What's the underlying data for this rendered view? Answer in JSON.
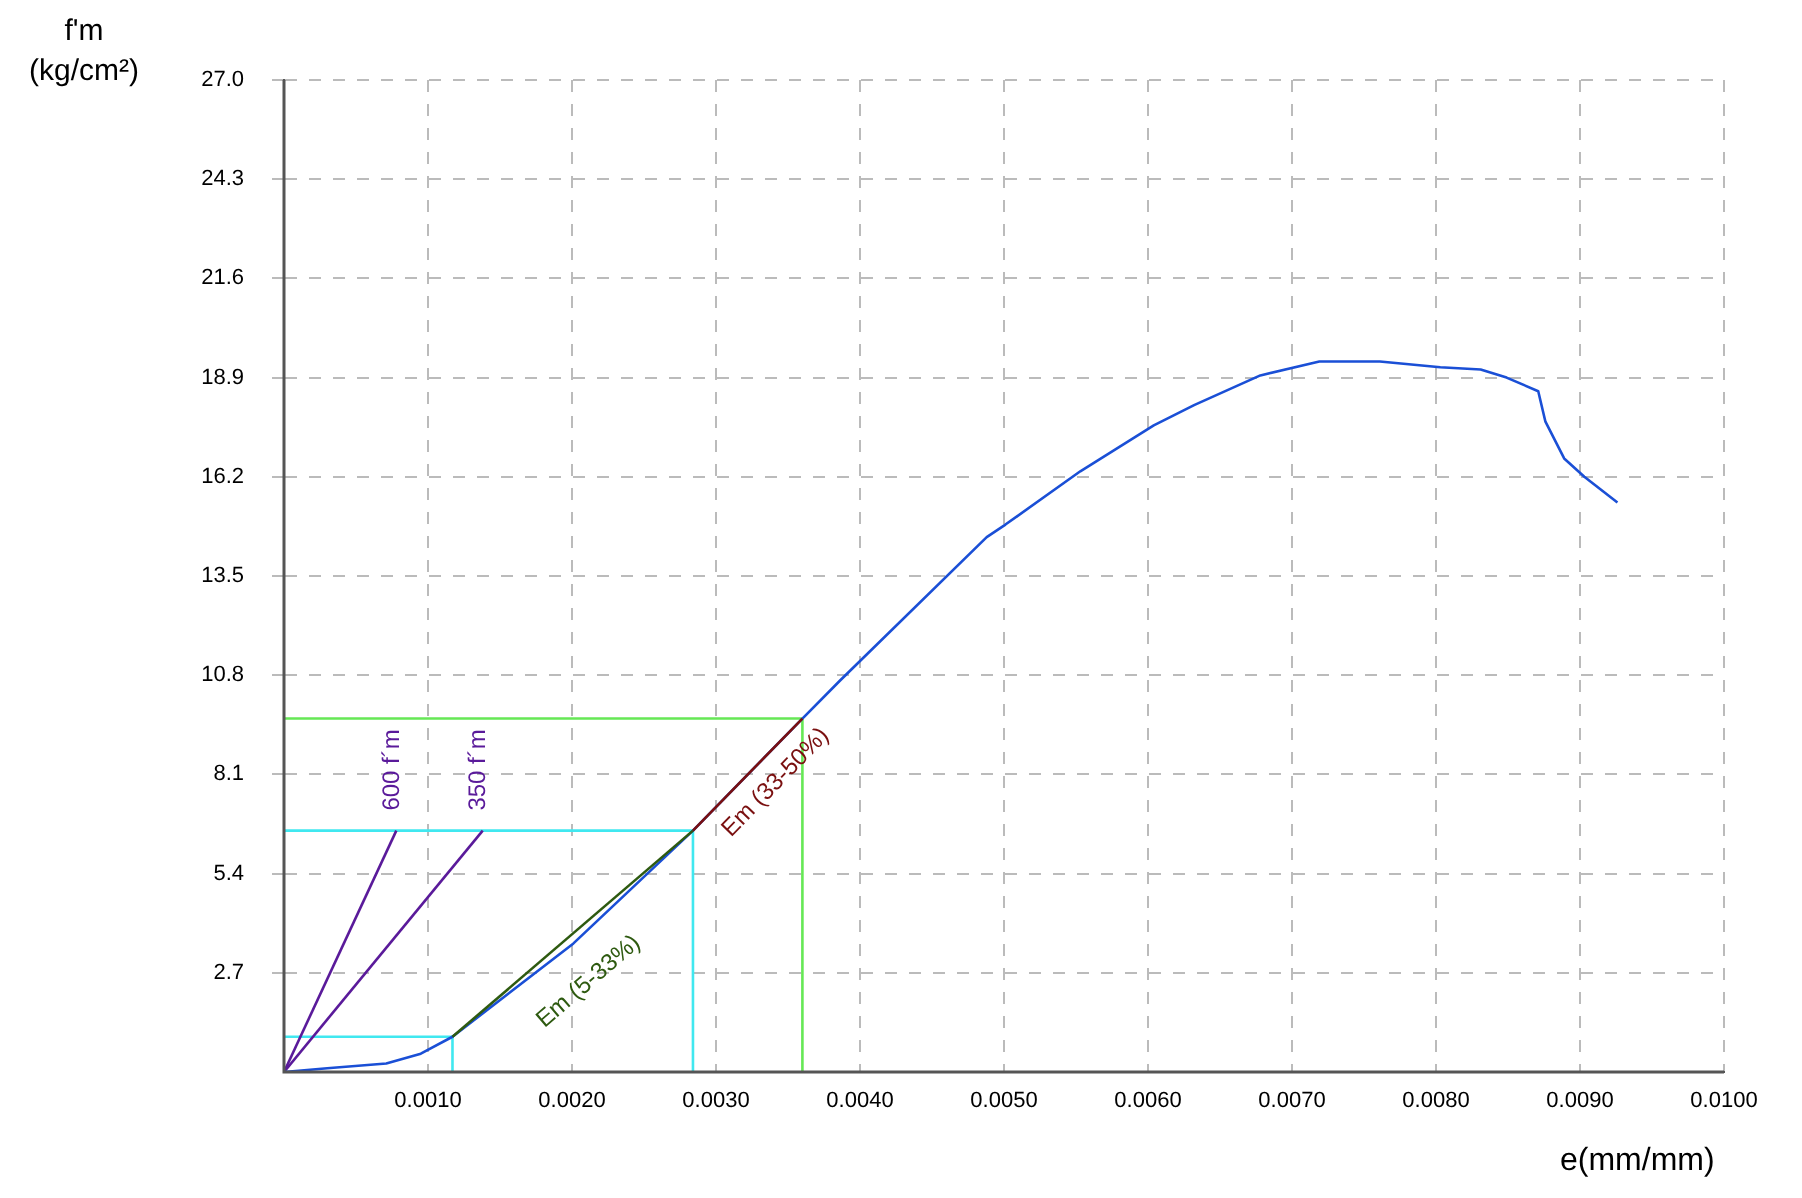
{
  "chart_data": {
    "type": "line",
    "xlabel": "e(mm/mm)",
    "ylabel": "f'm\n(kg/cm²)",
    "xlim": [
      0,
      0.01
    ],
    "ylim": [
      0,
      27
    ],
    "xticks": [
      {
        "value": 0.001,
        "label": "0.0010"
      },
      {
        "value": 0.002,
        "label": "0.0020"
      },
      {
        "value": 0.003,
        "label": "0.0030"
      },
      {
        "value": 0.004,
        "label": "0.0040"
      },
      {
        "value": 0.005,
        "label": "0.0050"
      },
      {
        "value": 0.006,
        "label": "0.0060"
      },
      {
        "value": 0.007,
        "label": "0.0070"
      },
      {
        "value": 0.008,
        "label": "0.0080"
      },
      {
        "value": 0.009,
        "label": "0.0090"
      },
      {
        "value": 0.01,
        "label": "0.0100"
      }
    ],
    "yticks": [
      {
        "value": 2.7,
        "label": "2.7"
      },
      {
        "value": 5.4,
        "label": "5.4"
      },
      {
        "value": 8.1,
        "label": "8.1"
      },
      {
        "value": 10.8,
        "label": "10.8"
      },
      {
        "value": 13.5,
        "label": "13.5"
      },
      {
        "value": 16.2,
        "label": "16.2"
      },
      {
        "value": 18.9,
        "label": "18.9"
      },
      {
        "value": 21.6,
        "label": "21.6"
      },
      {
        "value": 24.3,
        "label": "24.3"
      },
      {
        "value": 27,
        "label": "27.0"
      }
    ],
    "grid": true,
    "marker": "none",
    "line_style": "solid",
    "series": [
      {
        "color": "#40e8f0",
        "x": [
          0,
          0.00117,
          0.00117
        ],
        "values": [
          0.96,
          0.96,
          0
        ]
      },
      {
        "color": "#40e8f0",
        "x": [
          0,
          0.00284,
          0.00284
        ],
        "values": [
          6.57,
          6.57,
          0
        ]
      },
      {
        "color": "#66e855",
        "x": [
          0,
          0.0036,
          0.0036
        ],
        "values": [
          9.62,
          9.62,
          0
        ]
      },
      {
        "color": "#5a1a9a",
        "x": [
          0,
          0.00078
        ],
        "values": [
          0,
          6.57
        ]
      },
      {
        "color": "#5a1a9a",
        "x": [
          0,
          0.00138
        ],
        "values": [
          0,
          6.57
        ]
      },
      {
        "color": "#1a4fd6",
        "x": [
          0,
          0.0003,
          0.00071,
          0.00095,
          0.00117,
          0.00201,
          0.00284,
          0.0036,
          0.00386,
          0.00488,
          0.00501,
          0.00553,
          0.00604,
          0.00632,
          0.00678,
          0.00719,
          0.00761,
          0.00803,
          0.00831,
          0.00849,
          0.00871,
          0.00876,
          0.00889,
          0.00903,
          0.00926
        ],
        "values": [
          0,
          0.1,
          0.23,
          0.5,
          0.96,
          3.5,
          6.57,
          9.62,
          10.65,
          14.56,
          14.9,
          16.35,
          17.6,
          18.15,
          18.96,
          19.34,
          19.34,
          19.18,
          19.12,
          18.9,
          18.53,
          17.7,
          16.7,
          16.2,
          15.5
        ]
      },
      {
        "color": "#2e5a10",
        "x": [
          0.00117,
          0.00284
        ],
        "values": [
          0.96,
          6.57
        ]
      },
      {
        "color": "#7a1010",
        "x": [
          0.00284,
          0.0036
        ],
        "values": [
          6.57,
          9.62
        ]
      }
    ],
    "annotations": [
      "600 f´m",
      "350 f´m",
      "Em (5-33%)",
      "Em (33-50%)"
    ]
  }
}
